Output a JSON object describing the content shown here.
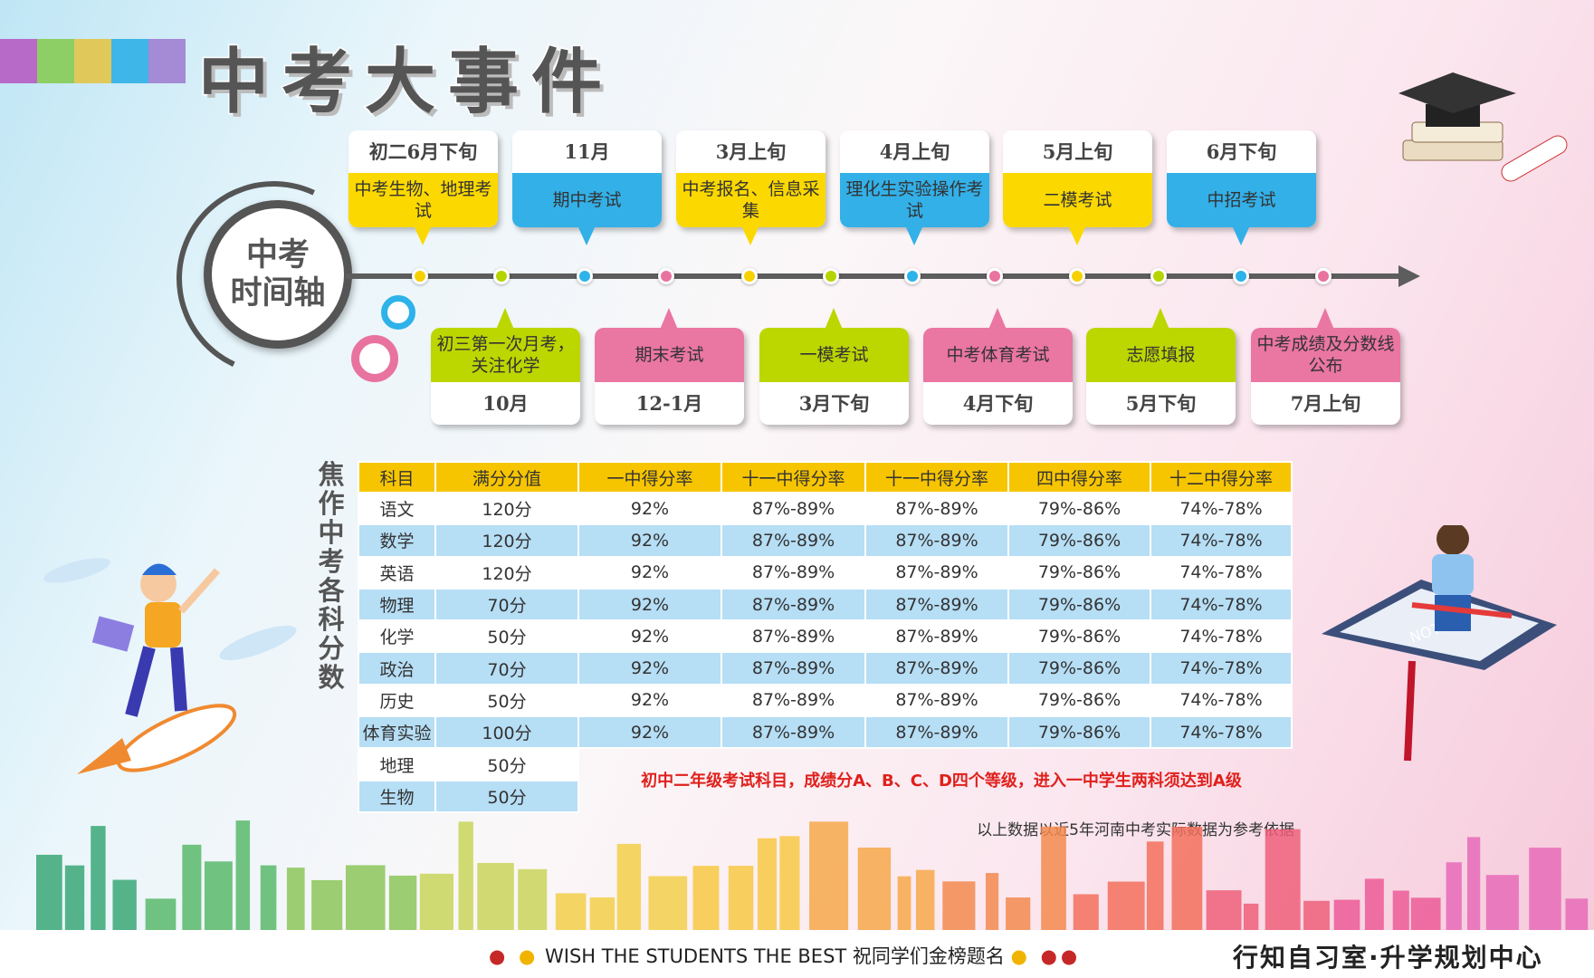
{
  "title": "中考大事件",
  "decor_colors": [
    "#b86ac9",
    "#8dcf64",
    "#e0c85a",
    "#3fb6e8",
    "#a58ad6"
  ],
  "timeline": {
    "hub_label_line1": "中考",
    "hub_label_line2": "时间轴",
    "dot_colors": [
      "#f7d000",
      "#b6d400",
      "#2eb2ea",
      "#e8739f",
      "#f7d000",
      "#b6d400",
      "#2eb2ea",
      "#e8739f",
      "#f7d000",
      "#b6d400",
      "#2eb2ea",
      "#e8739f"
    ],
    "top_events": [
      {
        "date": "初二6月下旬",
        "event": "中考生物、地理考试",
        "color": "#fbd800"
      },
      {
        "date": "11月",
        "event": "期中考试",
        "color": "#33b0e8"
      },
      {
        "date": "3月上旬",
        "event": "中考报名、信息采集",
        "color": "#fbd800"
      },
      {
        "date": "4月上旬",
        "event": "理化生实验操作考试",
        "color": "#33b0e8"
      },
      {
        "date": "5月上旬",
        "event": "二模考试",
        "color": "#fbd800"
      },
      {
        "date": "6月下旬",
        "event": "中招考试",
        "color": "#33b0e8"
      }
    ],
    "bottom_events": [
      {
        "date": "10月",
        "event": "初三第一次月考，关注化学",
        "color": "#bcd600"
      },
      {
        "date": "12-1月",
        "event": "期末考试",
        "color": "#ea76a2"
      },
      {
        "date": "3月下旬",
        "event": "一模考试",
        "color": "#bcd600"
      },
      {
        "date": "4月下旬",
        "event": "中考体育考试",
        "color": "#ea76a2"
      },
      {
        "date": "5月下旬",
        "event": "志愿填报",
        "color": "#bcd600"
      },
      {
        "date": "7月上旬",
        "event": "中考成绩及分数线公布",
        "color": "#ea76a2"
      }
    ]
  },
  "table": {
    "side_title": "焦作中考各科分数",
    "headers": [
      "科目",
      "满分分值",
      "一中得分率",
      "十一中得分率",
      "十一中得分率",
      "四中得分率",
      "十二中得分率"
    ],
    "rows": [
      [
        "语文",
        "120分",
        "92%",
        "87%-89%",
        "87%-89%",
        "79%-86%",
        "74%-78%"
      ],
      [
        "数学",
        "120分",
        "92%",
        "87%-89%",
        "87%-89%",
        "79%-86%",
        "74%-78%"
      ],
      [
        "英语",
        "120分",
        "92%",
        "87%-89%",
        "87%-89%",
        "79%-86%",
        "74%-78%"
      ],
      [
        "物理",
        "70分",
        "92%",
        "87%-89%",
        "87%-89%",
        "79%-86%",
        "74%-78%"
      ],
      [
        "化学",
        "50分",
        "92%",
        "87%-89%",
        "87%-89%",
        "79%-86%",
        "74%-78%"
      ],
      [
        "政治",
        "70分",
        "92%",
        "87%-89%",
        "87%-89%",
        "79%-86%",
        "74%-78%"
      ],
      [
        "历史",
        "50分",
        "92%",
        "87%-89%",
        "87%-89%",
        "79%-86%",
        "74%-78%"
      ],
      [
        "体育实验",
        "100分",
        "92%",
        "87%-89%",
        "87%-89%",
        "79%-86%",
        "74%-78%"
      ],
      [
        "地理",
        "50分"
      ],
      [
        "生物",
        "50分"
      ]
    ],
    "note": "初中二年级考试科目，成绩分A、B、C、D四个等级，进入一中学生两科须达到A级",
    "source": "以上数据以近5年河南中考实际数据为参考依据"
  },
  "footer": {
    "slogan": "WISH THE STUDENTS THE BEST  祝同学们金榜题名",
    "org": "行知自习室·升学规划中心"
  },
  "illustrations": {
    "notebook_label": "NOTE"
  }
}
